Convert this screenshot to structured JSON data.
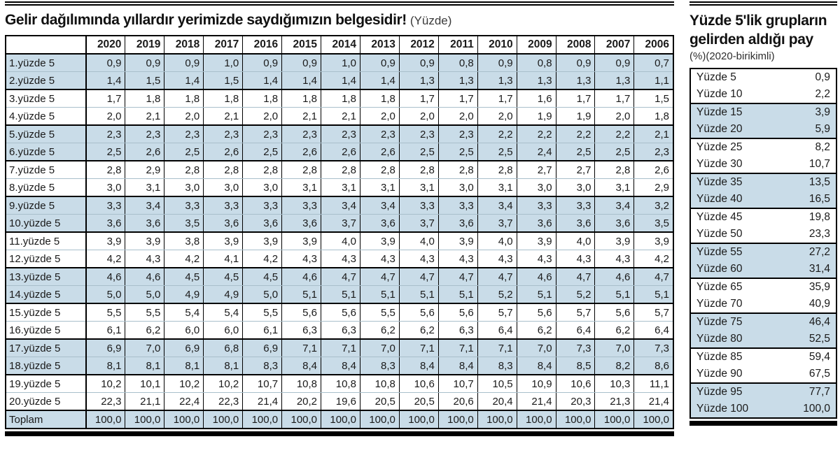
{
  "header": {
    "title": "Gelir dağılımında yıllardır yerimizde saydığımızın belgesidir!",
    "note": "(Yüzde)"
  },
  "sidebar": {
    "title": "Yüzde 5'lik grupların gelirden aldığı pay",
    "subtitle": "(%)(2020-birikimli)"
  },
  "colors": {
    "row_shade": "#c9dce8",
    "rule": "#000000",
    "text": "#1a1a1a"
  },
  "chart_data": [
    {
      "type": "table",
      "name": "income-share-by-5pct-group-and-year",
      "columns": [
        "",
        "2020",
        "2019",
        "2018",
        "2017",
        "2016",
        "2015",
        "2014",
        "2013",
        "2012",
        "2011",
        "2010",
        "2009",
        "2008",
        "2007",
        "2006"
      ],
      "rows": [
        [
          "1.yüzde 5",
          "0,9",
          "0,9",
          "0,9",
          "1,0",
          "0,9",
          "0,9",
          "1,0",
          "0,9",
          "0,9",
          "0,8",
          "0,9",
          "0,8",
          "0,9",
          "0,9",
          "0,7"
        ],
        [
          "2.yüzde 5",
          "1,4",
          "1,5",
          "1,4",
          "1,5",
          "1,4",
          "1,4",
          "1,4",
          "1,4",
          "1,3",
          "1,3",
          "1,3",
          "1,3",
          "1,3",
          "1,3",
          "1,1"
        ],
        [
          "3.yüzde 5",
          "1,7",
          "1,8",
          "1,8",
          "1,8",
          "1,8",
          "1,8",
          "1,8",
          "1,8",
          "1,7",
          "1,7",
          "1,7",
          "1,6",
          "1,7",
          "1,7",
          "1,5"
        ],
        [
          "4.yüzde 5",
          "2,0",
          "2,1",
          "2,0",
          "2,1",
          "2,0",
          "2,1",
          "2,1",
          "2,0",
          "2,0",
          "2,0",
          "2,0",
          "1,9",
          "1,9",
          "2,0",
          "1,8"
        ],
        [
          "5.yüzde 5",
          "2,3",
          "2,3",
          "2,3",
          "2,3",
          "2,3",
          "2,3",
          "2,3",
          "2,3",
          "2,3",
          "2,3",
          "2,2",
          "2,2",
          "2,2",
          "2,2",
          "2,1"
        ],
        [
          "6.yüzde 5",
          "2,5",
          "2,6",
          "2,5",
          "2,6",
          "2,5",
          "2,6",
          "2,6",
          "2,6",
          "2,5",
          "2,5",
          "2,5",
          "2,4",
          "2,5",
          "2,5",
          "2,3"
        ],
        [
          "7.yüzde 5",
          "2,8",
          "2,9",
          "2,8",
          "2,8",
          "2,8",
          "2,8",
          "2,8",
          "2,8",
          "2,8",
          "2,8",
          "2,8",
          "2,7",
          "2,7",
          "2,8",
          "2,6"
        ],
        [
          "8.yüzde 5",
          "3,0",
          "3,1",
          "3,0",
          "3,0",
          "3,0",
          "3,1",
          "3,1",
          "3,1",
          "3,1",
          "3,0",
          "3,1",
          "3,0",
          "3,0",
          "3,1",
          "2,9"
        ],
        [
          "9.yüzde 5",
          "3,3",
          "3,4",
          "3,3",
          "3,3",
          "3,3",
          "3,3",
          "3,4",
          "3,4",
          "3,3",
          "3,3",
          "3,4",
          "3,3",
          "3,3",
          "3,4",
          "3,2"
        ],
        [
          "10.yüzde 5",
          "3,6",
          "3,6",
          "3,5",
          "3,6",
          "3,6",
          "3,6",
          "3,7",
          "3,6",
          "3,7",
          "3,6",
          "3,7",
          "3,6",
          "3,6",
          "3,6",
          "3,5"
        ],
        [
          "11.yüzde 5",
          "3,9",
          "3,9",
          "3,8",
          "3,9",
          "3,9",
          "3,9",
          "4,0",
          "3,9",
          "4,0",
          "3,9",
          "4,0",
          "3,9",
          "4,0",
          "3,9",
          "3,9"
        ],
        [
          "12.yüzde 5",
          "4,2",
          "4,3",
          "4,2",
          "4,1",
          "4,2",
          "4,3",
          "4,3",
          "4,3",
          "4,3",
          "4,3",
          "4,3",
          "4,3",
          "4,3",
          "4,3",
          "4,2"
        ],
        [
          "13.yüzde 5",
          "4,6",
          "4,6",
          "4,5",
          "4,5",
          "4,5",
          "4,6",
          "4,7",
          "4,7",
          "4,7",
          "4,7",
          "4,7",
          "4,6",
          "4,7",
          "4,6",
          "4,7"
        ],
        [
          "14.yüzde 5",
          "5,0",
          "5,0",
          "4,9",
          "4,9",
          "5,0",
          "5,1",
          "5,1",
          "5,1",
          "5,1",
          "5,1",
          "5,2",
          "5,1",
          "5,2",
          "5,1",
          "5,1"
        ],
        [
          "15.yüzde 5",
          "5,5",
          "5,5",
          "5,4",
          "5,4",
          "5,5",
          "5,6",
          "5,6",
          "5,5",
          "5,6",
          "5,6",
          "5,7",
          "5,6",
          "5,7",
          "5,6",
          "5,7"
        ],
        [
          "16.yüzde 5",
          "6,1",
          "6,2",
          "6,0",
          "6,0",
          "6,1",
          "6,3",
          "6,3",
          "6,2",
          "6,2",
          "6,3",
          "6,4",
          "6,2",
          "6,4",
          "6,2",
          "6,4"
        ],
        [
          "17.yüzde 5",
          "6,9",
          "7,0",
          "6,9",
          "6,8",
          "6,9",
          "7,1",
          "7,1",
          "7,0",
          "7,1",
          "7,1",
          "7,1",
          "7,0",
          "7,3",
          "7,0",
          "7,3"
        ],
        [
          "18.yüzde 5",
          "8,1",
          "8,1",
          "8,1",
          "8,1",
          "8,3",
          "8,4",
          "8,4",
          "8,3",
          "8,4",
          "8,4",
          "8,3",
          "8,4",
          "8,5",
          "8,2",
          "8,6"
        ],
        [
          "19.yüzde 5",
          "10,2",
          "10,1",
          "10,2",
          "10,2",
          "10,7",
          "10,8",
          "10,8",
          "10,8",
          "10,6",
          "10,7",
          "10,5",
          "10,9",
          "10,6",
          "10,3",
          "11,1"
        ],
        [
          "20.yüzde 5",
          "22,3",
          "21,1",
          "22,4",
          "22,3",
          "21,4",
          "20,2",
          "19,6",
          "20,5",
          "20,5",
          "20,6",
          "20,4",
          "21,4",
          "20,3",
          "21,3",
          "21,4"
        ],
        [
          "Toplam",
          "100,0",
          "100,0",
          "100,0",
          "100,0",
          "100,0",
          "100,0",
          "100,0",
          "100,0",
          "100,0",
          "100,0",
          "100,0",
          "100,0",
          "100,0",
          "100,0",
          "100,0"
        ]
      ]
    },
    {
      "type": "table",
      "name": "cumulative-income-share-2020",
      "columns": [
        "",
        ""
      ],
      "rows": [
        [
          "Yüzde 5",
          "0,9"
        ],
        [
          "Yüzde 10",
          "2,2"
        ],
        [
          "Yüzde 15",
          "3,9"
        ],
        [
          "Yüzde 20",
          "5,9"
        ],
        [
          "Yüzde 25",
          "8,2"
        ],
        [
          "Yüzde 30",
          "10,7"
        ],
        [
          "Yüzde 35",
          "13,5"
        ],
        [
          "Yüzde 40",
          "16,5"
        ],
        [
          "Yüzde 45",
          "19,8"
        ],
        [
          "Yüzde 50",
          "23,3"
        ],
        [
          "Yüzde 55",
          "27,2"
        ],
        [
          "Yüzde 60",
          "31,4"
        ],
        [
          "Yüzde 65",
          "35,9"
        ],
        [
          "Yüzde 70",
          "40,9"
        ],
        [
          "Yüzde 75",
          "46,4"
        ],
        [
          "Yüzde 80",
          "52,5"
        ],
        [
          "Yüzde 85",
          "59,4"
        ],
        [
          "Yüzde 90",
          "67,5"
        ],
        [
          "Yüzde 95",
          "77,7"
        ],
        [
          "Yüzde 100",
          "100,0"
        ]
      ]
    }
  ]
}
